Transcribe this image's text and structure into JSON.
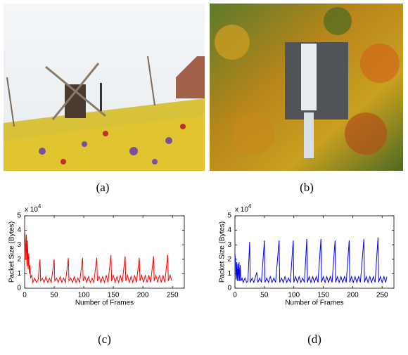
{
  "panels": {
    "a": "(a)",
    "b": "(b)"
  },
  "chart_data": [
    {
      "type": "line",
      "caption": "(c)",
      "x_label": "Number of Frames",
      "y_label": "Packet Size (Bytes)",
      "y_multiplier": {
        "base": "x 10",
        "exponent": "4"
      },
      "series": [
        {
          "color": "#ff0000",
          "x": [
            0,
            1,
            2,
            3,
            4,
            5,
            6,
            7,
            8,
            9,
            10,
            12,
            14,
            17,
            20,
            23,
            26,
            27,
            30,
            33,
            36,
            39,
            42,
            45,
            50,
            51,
            54,
            57,
            60,
            63,
            66,
            69,
            74,
            75,
            78,
            81,
            84,
            87,
            90,
            93,
            98,
            99,
            102,
            105,
            108,
            111,
            114,
            117,
            122,
            123,
            126,
            129,
            132,
            135,
            138,
            141,
            146,
            147,
            150,
            153,
            156,
            159,
            162,
            165,
            170,
            171,
            174,
            177,
            180,
            183,
            186,
            189,
            194,
            195,
            198,
            201,
            204,
            207,
            210,
            213,
            218,
            219,
            222,
            225,
            228,
            231,
            234,
            237,
            242,
            243,
            246,
            249
          ],
          "values": [
            4.0,
            3.6,
            2.0,
            3.7,
            1.5,
            3.3,
            1.3,
            2.4,
            1.0,
            1.6,
            0.7,
            0.9,
            0.4,
            0.7,
            0.4,
            0.6,
            2.0,
            0.5,
            0.7,
            0.4,
            0.8,
            0.4,
            0.7,
            0.4,
            2.0,
            0.5,
            0.7,
            0.4,
            0.8,
            0.4,
            0.7,
            0.4,
            2.1,
            0.5,
            0.7,
            0.4,
            0.8,
            0.4,
            0.7,
            0.4,
            2.1,
            0.5,
            0.8,
            0.4,
            0.8,
            0.4,
            0.7,
            0.4,
            2.1,
            0.5,
            0.8,
            0.4,
            0.8,
            0.4,
            0.9,
            0.4,
            2.3,
            0.5,
            0.9,
            0.4,
            0.8,
            0.4,
            0.9,
            0.4,
            2.2,
            0.5,
            0.9,
            0.4,
            0.8,
            0.4,
            0.9,
            0.4,
            2.1,
            0.5,
            0.9,
            0.4,
            0.9,
            0.4,
            0.9,
            0.4,
            2.2,
            0.5,
            0.9,
            0.4,
            0.9,
            0.4,
            0.9,
            0.4,
            2.3,
            0.5,
            0.9,
            0.5
          ]
        }
      ],
      "xlim": [
        0,
        270
      ],
      "xticks": [
        0,
        50,
        100,
        150,
        200,
        250
      ],
      "ylim": [
        0,
        5
      ],
      "yticks": [
        0,
        1,
        2,
        3,
        4,
        5
      ]
    },
    {
      "type": "line",
      "caption": "(d)",
      "x_label": "Number of Frames",
      "y_label": "Packet Size (Bytes)",
      "y_multiplier": {
        "base": "x 10",
        "exponent": "4"
      },
      "series": [
        {
          "color": "#0000ff",
          "x": [
            0,
            1,
            2,
            3,
            4,
            5,
            6,
            7,
            8,
            9,
            10,
            12,
            14,
            17,
            20,
            22,
            25,
            26,
            29,
            32,
            35,
            37,
            39,
            42,
            45,
            50,
            51,
            54,
            57,
            60,
            63,
            66,
            69,
            75,
            76,
            79,
            82,
            85,
            88,
            91,
            94,
            99,
            100,
            103,
            106,
            109,
            112,
            115,
            118,
            122,
            123,
            126,
            129,
            132,
            135,
            138,
            141,
            146,
            147,
            150,
            153,
            156,
            159,
            162,
            165,
            170,
            171,
            174,
            177,
            180,
            183,
            186,
            189,
            194,
            195,
            198,
            201,
            204,
            207,
            210,
            213,
            219,
            220,
            223,
            226,
            229,
            232,
            235,
            238,
            243,
            244,
            247,
            250,
            253,
            256,
            258
          ],
          "values": [
            2.4,
            1.8,
            0.6,
            1.8,
            0.5,
            1.7,
            0.5,
            1.8,
            0.5,
            1.6,
            0.5,
            0.7,
            0.4,
            0.7,
            0.4,
            0.5,
            3.2,
            0.4,
            0.7,
            0.4,
            0.8,
            1.1,
            0.4,
            0.7,
            0.4,
            3.3,
            0.4,
            0.7,
            0.4,
            0.8,
            0.4,
            0.7,
            0.4,
            3.3,
            0.4,
            0.7,
            0.4,
            0.8,
            0.4,
            0.7,
            0.4,
            3.3,
            0.4,
            0.8,
            0.4,
            0.8,
            0.4,
            0.7,
            0.4,
            3.4,
            0.4,
            0.8,
            0.4,
            0.8,
            0.4,
            0.8,
            0.4,
            3.4,
            0.4,
            0.8,
            0.4,
            0.8,
            0.4,
            0.8,
            0.4,
            3.3,
            0.4,
            0.8,
            0.4,
            0.8,
            0.4,
            0.8,
            0.4,
            3.3,
            0.4,
            0.8,
            0.4,
            0.8,
            0.4,
            0.8,
            0.4,
            3.4,
            0.4,
            0.8,
            0.4,
            0.8,
            0.4,
            0.8,
            0.4,
            3.5,
            0.4,
            0.8,
            0.4,
            0.8,
            0.4,
            0.8
          ]
        }
      ],
      "xlim": [
        0,
        270
      ],
      "xticks": [
        0,
        50,
        100,
        150,
        200,
        250
      ],
      "ylim": [
        0,
        5
      ],
      "yticks": [
        0,
        1,
        2,
        3,
        4,
        5
      ]
    }
  ]
}
